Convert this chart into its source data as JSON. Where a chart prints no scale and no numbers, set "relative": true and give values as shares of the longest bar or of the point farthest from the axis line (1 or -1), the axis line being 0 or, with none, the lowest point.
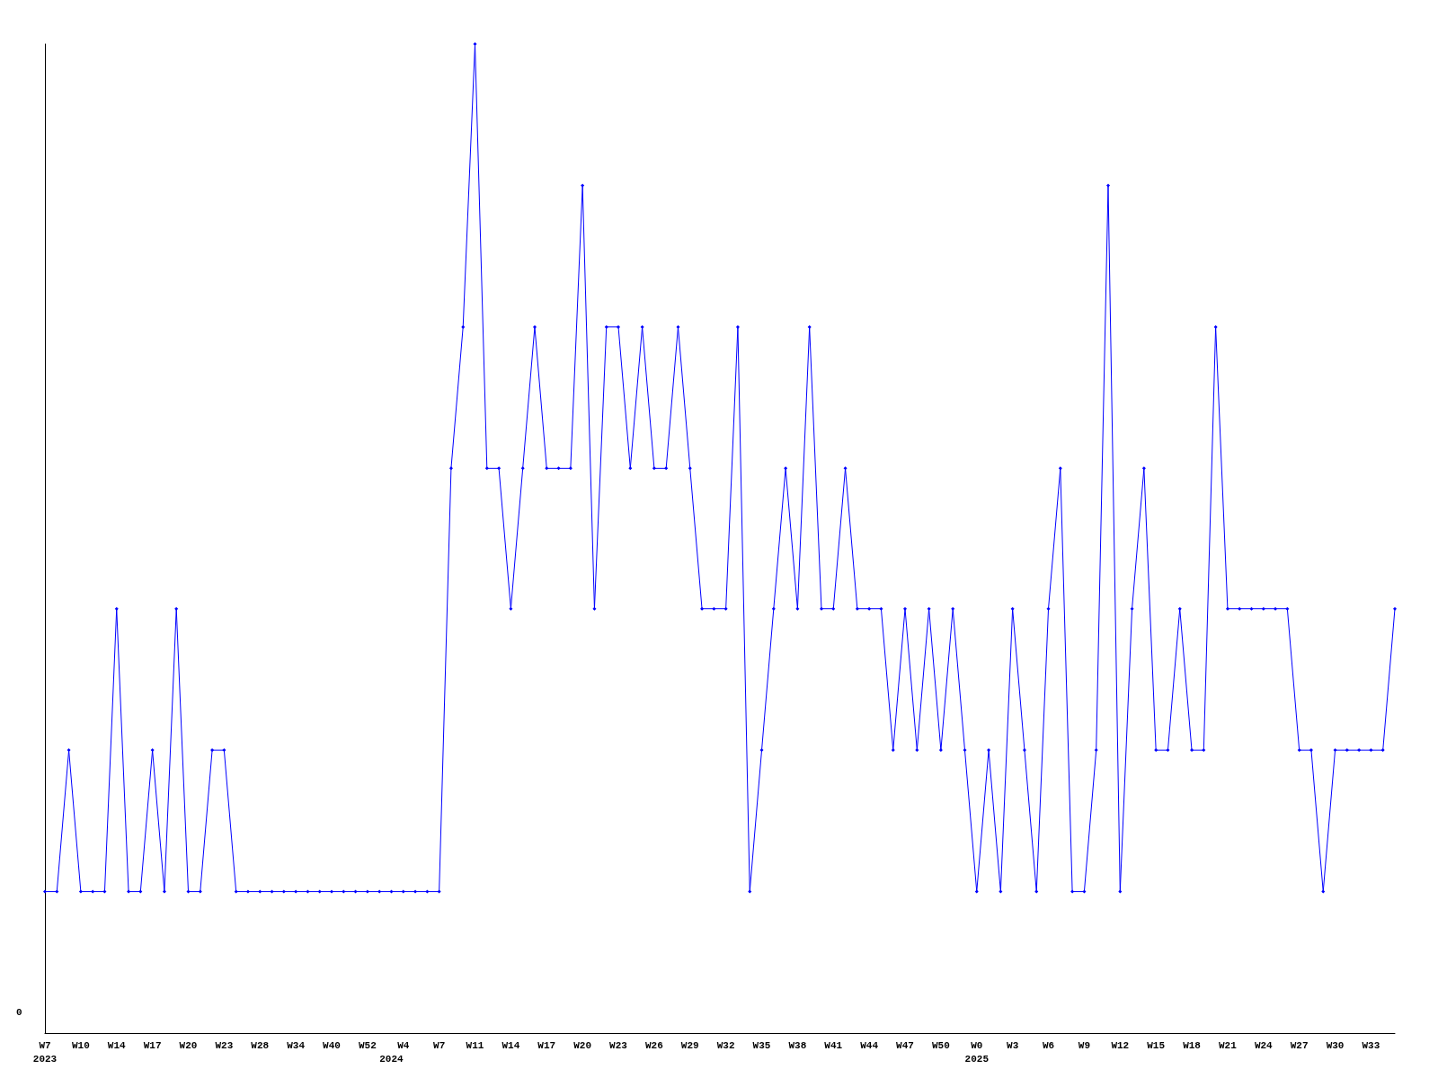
{
  "chart_data": {
    "type": "line",
    "relative": true,
    "color": "#0000ff",
    "marker": "diamond",
    "line_style": "solid",
    "grid": false,
    "annotations": [
      "0"
    ],
    "categories": [
      "W7\n2023",
      null,
      null,
      "W10",
      null,
      null,
      "W14",
      null,
      null,
      "W17",
      null,
      null,
      "W20",
      null,
      null,
      "W23",
      null,
      null,
      "W28",
      null,
      null,
      "W34",
      null,
      null,
      "W40",
      null,
      null,
      "W52",
      null,
      "\n2024",
      "W4",
      null,
      null,
      "W7",
      null,
      null,
      "W11",
      null,
      null,
      "W14",
      null,
      null,
      "W17",
      null,
      null,
      "W20",
      null,
      null,
      "W23",
      null,
      null,
      "W26",
      null,
      null,
      "W29",
      null,
      null,
      "W32",
      null,
      null,
      "W35",
      null,
      null,
      "W38",
      null,
      null,
      "W41",
      null,
      null,
      "W44",
      null,
      null,
      "W47",
      null,
      null,
      "W50",
      null,
      null,
      "W0\n2025",
      null,
      null,
      "W3",
      null,
      null,
      "W6",
      null,
      null,
      "W9",
      null,
      null,
      "W12",
      null,
      null,
      "W15",
      null,
      null,
      "W18",
      null,
      null,
      "W21",
      null,
      null,
      "W24",
      null,
      null,
      "W27",
      null,
      null,
      "W30",
      null,
      null,
      "W33",
      null,
      null
    ],
    "values": [
      0.143,
      0.143,
      0.286,
      0.143,
      0.143,
      0.143,
      0.429,
      0.143,
      0.143,
      0.286,
      0.143,
      0.429,
      0.143,
      0.143,
      0.286,
      0.286,
      0.143,
      0.143,
      0.143,
      0.143,
      0.143,
      0.143,
      0.143,
      0.143,
      0.143,
      0.143,
      0.143,
      0.143,
      0.143,
      0.143,
      0.143,
      0.143,
      0.143,
      0.143,
      0.571,
      0.714,
      1,
      0.571,
      0.571,
      0.429,
      0.571,
      0.714,
      0.571,
      0.571,
      0.571,
      0.857,
      0.429,
      0.714,
      0.714,
      0.571,
      0.714,
      0.571,
      0.571,
      0.714,
      0.571,
      0.429,
      0.429,
      0.429,
      0.714,
      0.143,
      0.286,
      0.429,
      0.571,
      0.429,
      0.714,
      0.429,
      0.429,
      0.571,
      0.429,
      0.429,
      0.429,
      0.286,
      0.429,
      0.286,
      0.429,
      0.286,
      0.429,
      0.286,
      0.143,
      0.286,
      0.143,
      0.429,
      0.286,
      0.143,
      0.429,
      0.571,
      0.143,
      0.143,
      0.286,
      0.857,
      0.143,
      0.429,
      0.571,
      0.286,
      0.286,
      0.429,
      0.286,
      0.286,
      0.714,
      0.429,
      0.429,
      0.429,
      0.429,
      0.429,
      0.429,
      0.286,
      0.286,
      0.143,
      0.286,
      0.286,
      0.286,
      0.286,
      0.286,
      0.429
    ]
  }
}
